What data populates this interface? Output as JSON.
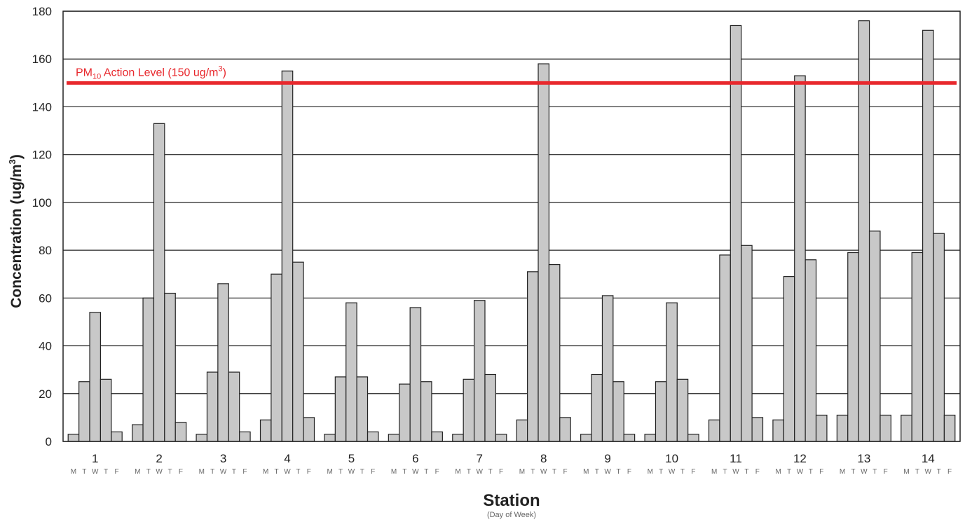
{
  "chart_data": {
    "type": "bar",
    "ylabel_main": "Concentration (ug/m",
    "ylabel_sup": "3",
    "ylabel_end": ")",
    "xlabel": "Station",
    "xlabel_sub": "(Day of Week)",
    "ylim": [
      0,
      180
    ],
    "yticks": [
      0,
      20,
      40,
      60,
      80,
      100,
      120,
      140,
      160,
      180
    ],
    "grid": true,
    "categories": [
      "1",
      "2",
      "3",
      "4",
      "5",
      "6",
      "7",
      "8",
      "9",
      "10",
      "11",
      "12",
      "13",
      "14"
    ],
    "days": [
      "M",
      "T",
      "W",
      "T",
      "F"
    ],
    "series": [
      {
        "name": "M",
        "values": [
          3,
          7,
          3,
          9,
          3,
          3,
          3,
          9,
          3,
          3,
          9,
          9,
          11,
          11
        ]
      },
      {
        "name": "T",
        "values": [
          25,
          60,
          29,
          70,
          27,
          24,
          26,
          71,
          28,
          25,
          78,
          69,
          79,
          79
        ]
      },
      {
        "name": "W",
        "values": [
          54,
          133,
          66,
          155,
          58,
          56,
          59,
          158,
          61,
          58,
          174,
          153,
          176,
          172
        ]
      },
      {
        "name": "T",
        "values": [
          26,
          62,
          29,
          75,
          27,
          25,
          28,
          74,
          25,
          26,
          82,
          76,
          88,
          87
        ]
      },
      {
        "name": "F",
        "values": [
          4,
          8,
          4,
          10,
          4,
          4,
          3,
          10,
          3,
          3,
          10,
          11,
          11,
          11
        ]
      }
    ],
    "bar_color": "#c8c8c8",
    "reference_line": {
      "value": 150,
      "label_prefix": "PM",
      "label_sub": "10",
      "label_mid": " Action Level (150 ug/m",
      "label_sup": "3",
      "label_end": ")",
      "color": "#e8282d"
    }
  }
}
